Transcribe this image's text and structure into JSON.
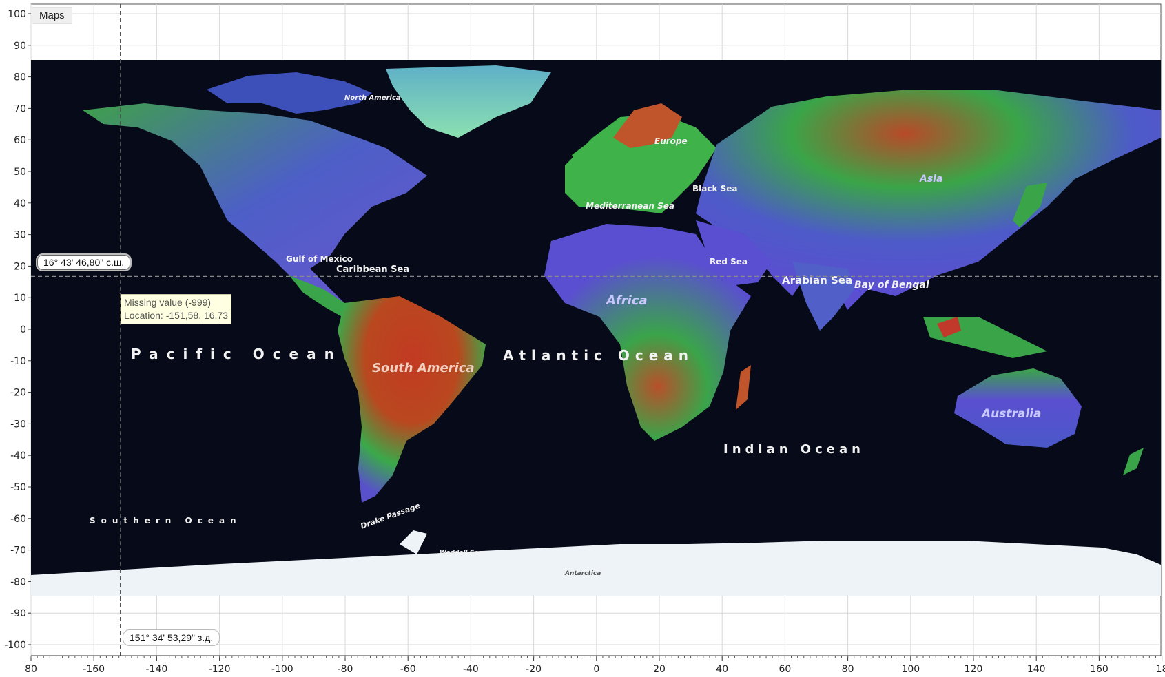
{
  "tab": {
    "label": "Maps"
  },
  "axes": {
    "y_ticks": [
      "100",
      "90",
      "80",
      "70",
      "60",
      "50",
      "40",
      "30",
      "20",
      "10",
      "0",
      "-10",
      "-20",
      "-30",
      "-40",
      "-50",
      "-60",
      "-70",
      "-80",
      "-90",
      "-100"
    ],
    "x_ticks": [
      "80",
      "-160",
      "-140",
      "-120",
      "-100",
      "-80",
      "-60",
      "-40",
      "-20",
      "0",
      "20",
      "40",
      "60",
      "80",
      "100",
      "120",
      "140",
      "160",
      "18"
    ]
  },
  "cursor": {
    "lat_label": "16° 43' 46,80\" с.ш.",
    "lon_label": "151° 34' 53,29\" з.д.",
    "lon": -151.58,
    "lat": 16.73
  },
  "tooltip": {
    "line1": "Missing value (-999)",
    "line2": "Location: -151,58, 16,73"
  },
  "map_labels": {
    "north_america": "North America",
    "gulf": "Gulf of Mexico",
    "caribbean": "Caribbean Sea",
    "pacific": "Pacific Ocean",
    "atlantic": "Atlantic Ocean",
    "south_america": "South America",
    "southern_ocean": "Southern Ocean",
    "drake": "Drake Passage",
    "weddell": "Weddell Sea",
    "antarctica": "Antarctica",
    "europe": "Europe",
    "mediterranean": "Mediterranean Sea",
    "black_sea": "Black Sea",
    "red_sea": "Red Sea",
    "africa": "Africa",
    "arabian": "Arabian Sea",
    "bengal": "Bay of Bengal",
    "indian": "Indian Ocean",
    "asia": "Asia",
    "australia": "Australia"
  },
  "colors": {
    "ocean": "#070a18",
    "high": "#c0392b",
    "mid": "#2fb04a",
    "low": "#5a4fd0",
    "ice": "#eef3f7",
    "grid": "#d8d8d8"
  }
}
